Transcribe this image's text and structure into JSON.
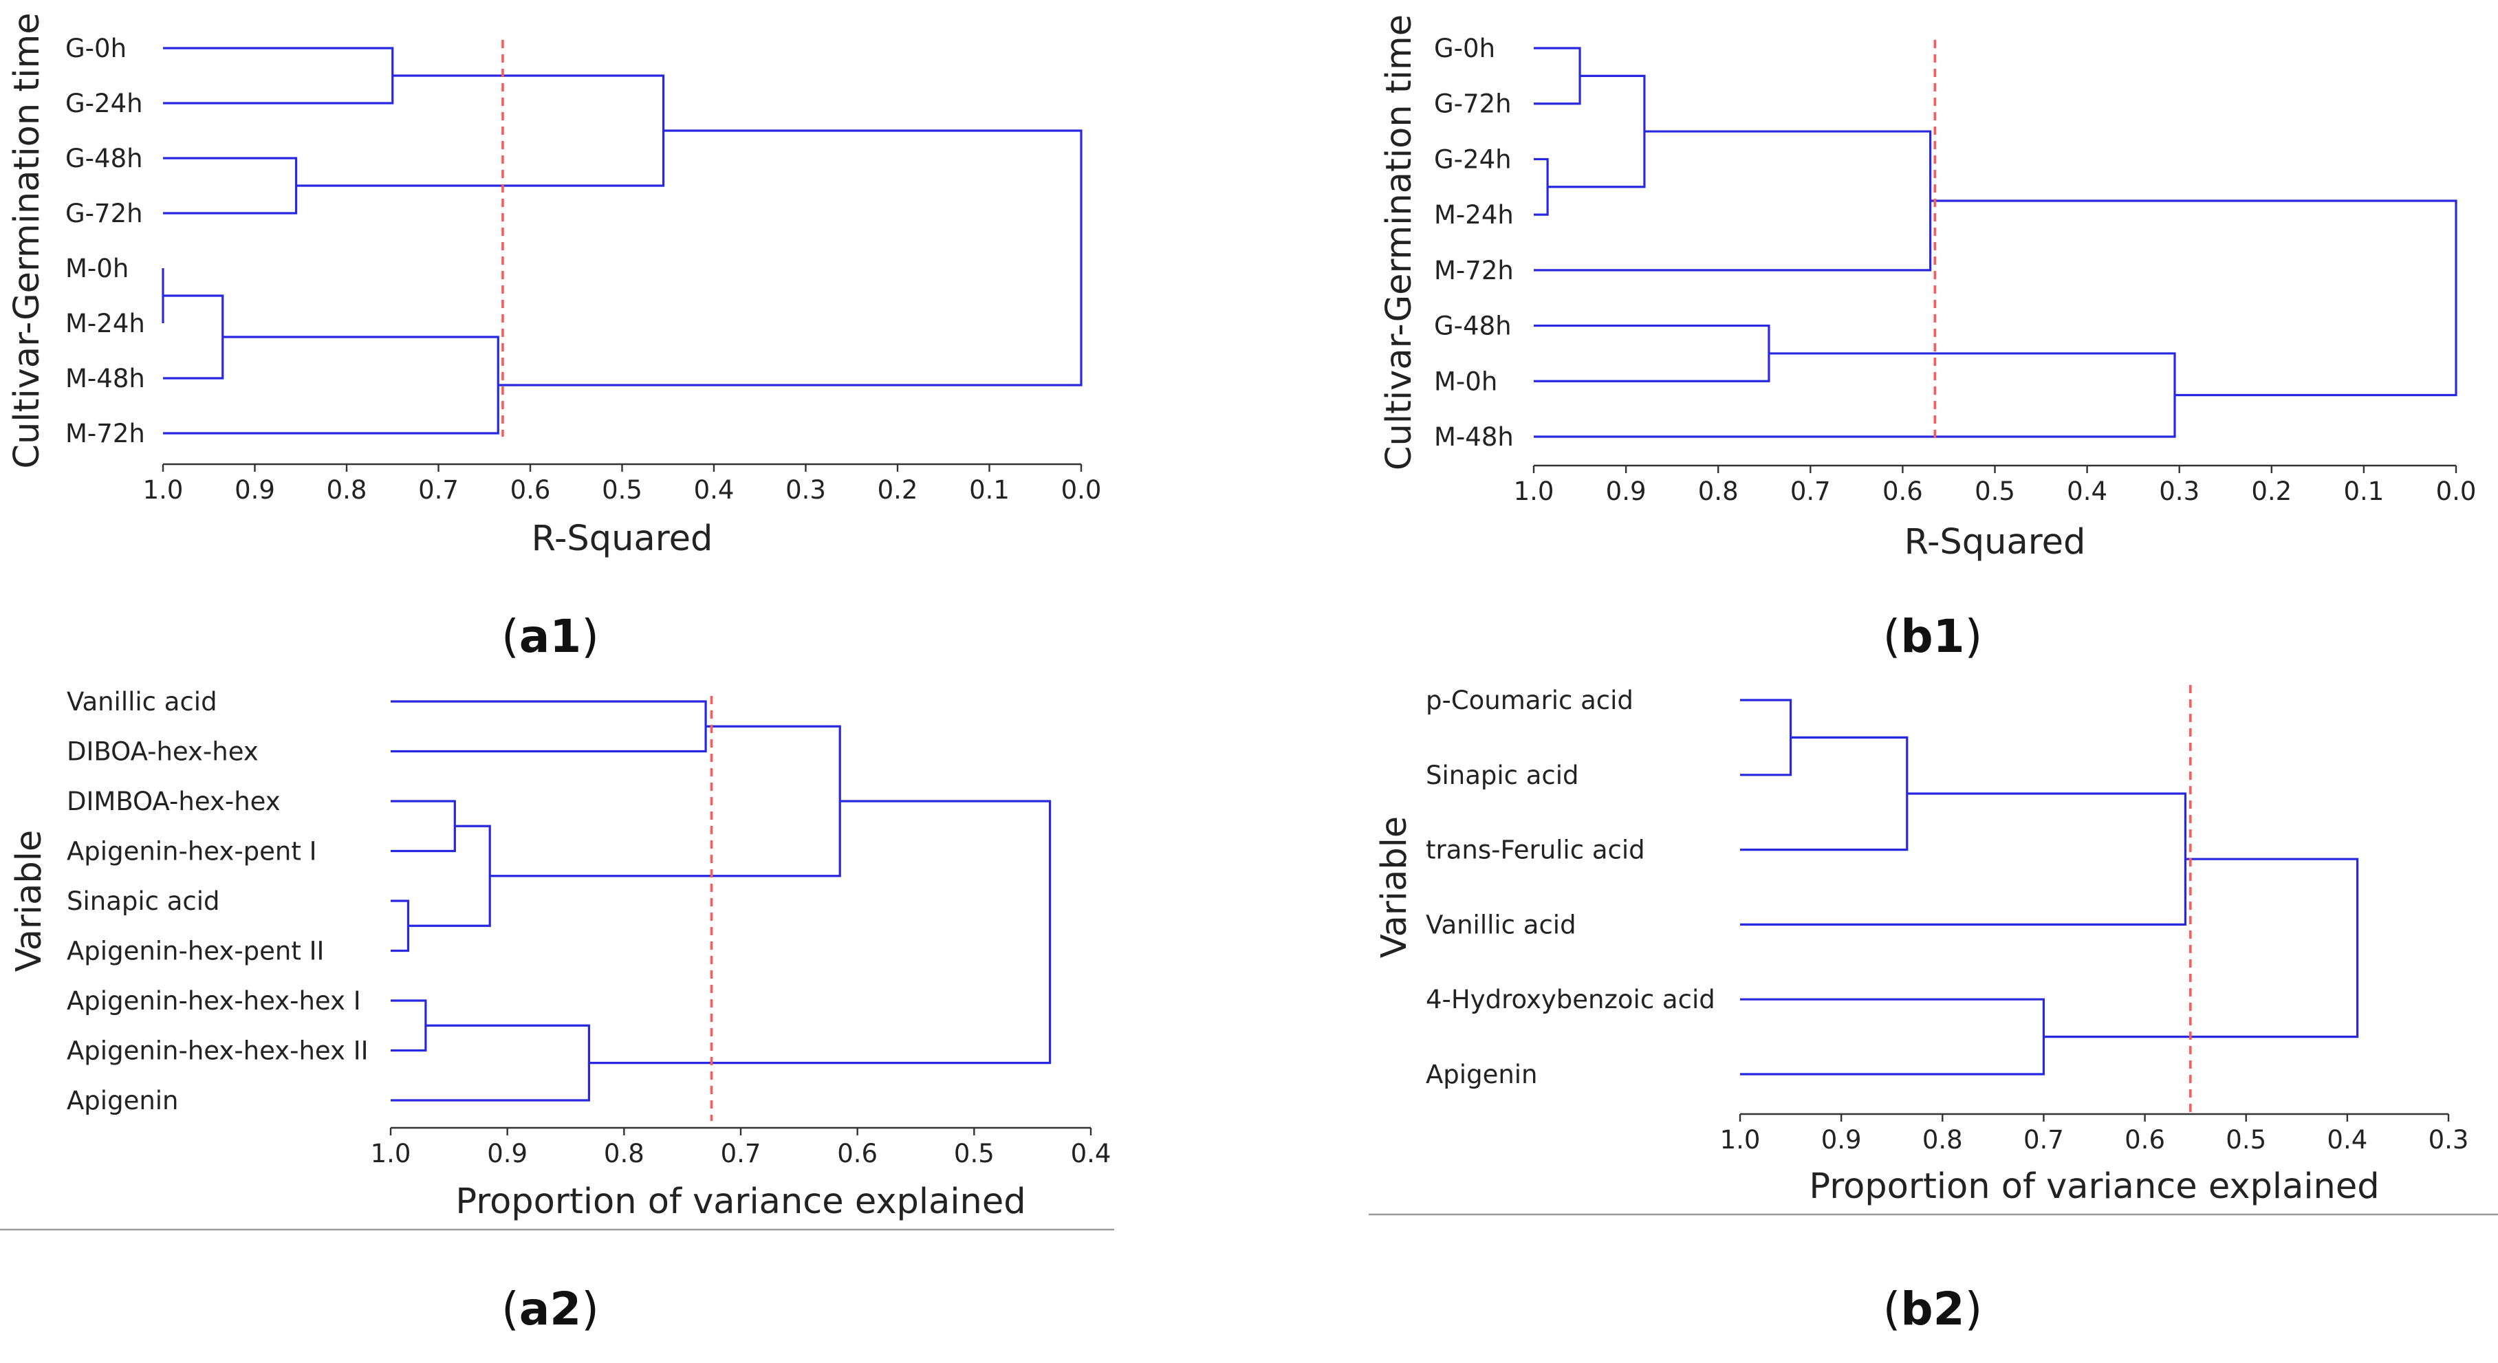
{
  "figure": {
    "captions": {
      "a1": {
        "open": "(",
        "bold": "a1",
        "close": ")"
      },
      "b1": {
        "open": "(",
        "bold": "b1",
        "close": ")"
      },
      "a2": {
        "open": "(",
        "bold": "a2",
        "close": ")"
      },
      "b2": {
        "open": "(",
        "bold": "b2",
        "close": ")"
      }
    }
  },
  "colors": {
    "link": "#2828e0",
    "cutoff_line": "#ff5a5a",
    "axis": "#333333",
    "text": "#222222"
  },
  "chart_data": [
    {
      "id": "a1",
      "type": "dendrogram",
      "orientation": "horizontal",
      "ylabel": "Cultivar-Germination time",
      "xlabel": "R-Squared",
      "xlim": [
        1.0,
        0.0
      ],
      "ticks": [
        1.0,
        0.9,
        0.8,
        0.7,
        0.6,
        0.5,
        0.4,
        0.3,
        0.2,
        0.1,
        0.0
      ],
      "tick_labels": [
        "1.0",
        "0.9",
        "0.8",
        "0.7",
        "0.6",
        "0.5",
        "0.4",
        "0.3",
        "0.2",
        "0.1",
        "0.0"
      ],
      "leaves": [
        "G-0h",
        "G-24h",
        "G-48h",
        "G-72h",
        "M-0h",
        "M-24h",
        "M-48h",
        "M-72h"
      ],
      "merges": [
        {
          "a": "L0",
          "b": "L1",
          "height": 0.75
        },
        {
          "a": "L2",
          "b": "L3",
          "height": 0.855
        },
        {
          "a": "C0",
          "b": "C1",
          "height": 0.455
        },
        {
          "a": "L4",
          "b": "L5",
          "height": 1.0
        },
        {
          "a": "C3",
          "b": "L6",
          "height": 0.935
        },
        {
          "a": "C4",
          "b": "L7",
          "height": 0.635
        },
        {
          "a": "C2",
          "b": "C5",
          "height": 0.0
        }
      ],
      "cutoff": 0.63
    },
    {
      "id": "b1",
      "type": "dendrogram",
      "orientation": "horizontal",
      "ylabel": "Cultivar-Germination time",
      "xlabel": "R-Squared",
      "xlim": [
        1.0,
        0.0
      ],
      "ticks": [
        1.0,
        0.9,
        0.8,
        0.7,
        0.6,
        0.5,
        0.4,
        0.3,
        0.2,
        0.1,
        0.0
      ],
      "tick_labels": [
        "1.0",
        "0.9",
        "0.8",
        "0.7",
        "0.6",
        "0.5",
        "0.4",
        "0.3",
        "0.2",
        "0.1",
        "0.0"
      ],
      "leaves": [
        "G-0h",
        "G-72h",
        "G-24h",
        "M-24h",
        "M-72h",
        "G-48h",
        "M-0h",
        "M-48h"
      ],
      "merges": [
        {
          "a": "L0",
          "b": "L1",
          "height": 0.95
        },
        {
          "a": "L2",
          "b": "L3",
          "height": 0.985
        },
        {
          "a": "C0",
          "b": "C1",
          "height": 0.88
        },
        {
          "a": "C2",
          "b": "L4",
          "height": 0.57
        },
        {
          "a": "L5",
          "b": "L6",
          "height": 0.745
        },
        {
          "a": "C4",
          "b": "L7",
          "height": 0.305
        },
        {
          "a": "C3",
          "b": "C5",
          "height": 0.0
        }
      ],
      "cutoff": 0.565
    },
    {
      "id": "a2",
      "type": "dendrogram",
      "orientation": "horizontal",
      "ylabel": "Variable",
      "xlabel": "Proportion of variance explained",
      "xlim": [
        1.0,
        0.4
      ],
      "ticks": [
        1.0,
        0.9,
        0.8,
        0.7,
        0.6,
        0.5,
        0.4
      ],
      "tick_labels": [
        "1.0",
        "0.9",
        "0.8",
        "0.7",
        "0.6",
        "0.5",
        "0.4"
      ],
      "leaves": [
        "Vanillic acid",
        "DIBOA-hex-hex",
        "DIMBOA-hex-hex",
        "Apigenin-hex-pent I",
        "Sinapic acid",
        "Apigenin-hex-pent II",
        "Apigenin-hex-hex-hex I",
        "Apigenin-hex-hex-hex II",
        "Apigenin"
      ],
      "merges": [
        {
          "a": "L0",
          "b": "L1",
          "height": 0.73
        },
        {
          "a": "L2",
          "b": "L3",
          "height": 0.945
        },
        {
          "a": "L4",
          "b": "L5",
          "height": 0.985
        },
        {
          "a": "C1",
          "b": "C2",
          "height": 0.915
        },
        {
          "a": "C0",
          "b": "C3",
          "height": 0.615
        },
        {
          "a": "L6",
          "b": "L7",
          "height": 0.97
        },
        {
          "a": "C5",
          "b": "L8",
          "height": 0.83
        },
        {
          "a": "C4",
          "b": "C6",
          "height": 0.435
        }
      ],
      "cutoff": 0.725
    },
    {
      "id": "b2",
      "type": "dendrogram",
      "orientation": "horizontal",
      "ylabel": "Variable",
      "xlabel": "Proportion of variance explained",
      "xlim": [
        1.0,
        0.3
      ],
      "ticks": [
        1.0,
        0.9,
        0.8,
        0.7,
        0.6,
        0.5,
        0.4,
        0.3
      ],
      "tick_labels": [
        "1.0",
        "0.9",
        "0.8",
        "0.7",
        "0.6",
        "0.5",
        "0.4",
        "0.3"
      ],
      "leaves": [
        "p-Coumaric acid",
        "Sinapic acid",
        "trans-Ferulic acid",
        "Vanillic acid",
        "4-Hydroxybenzoic acid",
        "Apigenin"
      ],
      "merges": [
        {
          "a": "L0",
          "b": "L1",
          "height": 0.95
        },
        {
          "a": "C0",
          "b": "L2",
          "height": 0.835
        },
        {
          "a": "C1",
          "b": "L3",
          "height": 0.56
        },
        {
          "a": "L4",
          "b": "L5",
          "height": 0.7
        },
        {
          "a": "C2",
          "b": "C3",
          "height": 0.39
        }
      ],
      "cutoff": 0.555
    }
  ]
}
